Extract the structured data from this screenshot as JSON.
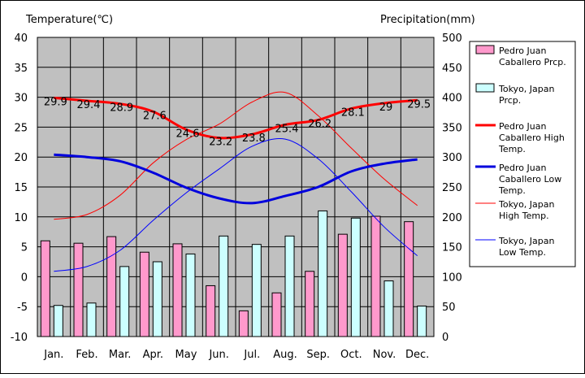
{
  "chart_data": {
    "type": "bar",
    "left_axis_title": "Temperature(℃)",
    "right_axis_title": "Precipitation(mm)",
    "categories": [
      "Jan.",
      "Feb.",
      "Mar.",
      "Apr.",
      "May",
      "Jun.",
      "Jul.",
      "Aug.",
      "Sep.",
      "Oct.",
      "Nov.",
      "Dec."
    ],
    "left_axis": {
      "min": -10,
      "max": 40,
      "step": 5
    },
    "right_axis": {
      "min": 0,
      "max": 500,
      "step": 50
    },
    "grid": true,
    "plot_background": "#c0c0c0",
    "legend_position": "right",
    "bar_series": [
      {
        "name": "Pedro Juan Caballero Prcp.",
        "legend_lines": [
          "Pedro Juan",
          "Caballero Prcp."
        ],
        "color": "#ff99cc",
        "values": [
          160,
          156,
          167,
          141,
          155,
          85,
          43,
          73,
          109,
          171,
          201,
          192
        ]
      },
      {
        "name": "Tokyo, Japan Prcp.",
        "legend_lines": [
          "Tokyo, Japan",
          "Prcp."
        ],
        "color": "#ccffff",
        "values": [
          52,
          56,
          117,
          125,
          138,
          168,
          154,
          168,
          210,
          198,
          93,
          51
        ]
      }
    ],
    "line_series": [
      {
        "name": "Pedro Juan Caballero High Temp.",
        "legend_lines": [
          "Pedro Juan",
          "Caballero High",
          "Temp."
        ],
        "color": "#ff0000",
        "width": 3,
        "show_labels": true,
        "values": [
          29.9,
          29.4,
          28.9,
          27.6,
          24.6,
          23.2,
          23.8,
          25.4,
          26.2,
          28.1,
          29,
          29.5
        ]
      },
      {
        "name": "Pedro Juan Caballero Low Temp.",
        "legend_lines": [
          "Pedro Juan",
          "Caballero Low",
          "Temp."
        ],
        "color": "#0000dd",
        "width": 3,
        "show_labels": false,
        "values": [
          20.4,
          20,
          19.3,
          17.4,
          14.9,
          13.1,
          12.3,
          13.5,
          15,
          17.6,
          18.9,
          19.6
        ]
      },
      {
        "name": "Tokyo, Japan High Temp.",
        "legend_lines": [
          "Tokyo, Japan",
          "High Temp."
        ],
        "color": "#ff0000",
        "width": 1,
        "show_labels": false,
        "values": [
          9.6,
          10.4,
          13.6,
          19,
          22.9,
          25.5,
          29.2,
          30.8,
          26.9,
          21.5,
          16.3,
          11.9
        ]
      },
      {
        "name": "Tokyo, Japan Low Temp.",
        "legend_lines": [
          "Tokyo, Japan",
          "Low Temp."
        ],
        "color": "#0000ff",
        "width": 1,
        "show_labels": false,
        "values": [
          0.9,
          1.7,
          4.4,
          9.4,
          14,
          18,
          21.8,
          23,
          19.7,
          14.2,
          8.3,
          3.5
        ]
      }
    ]
  }
}
